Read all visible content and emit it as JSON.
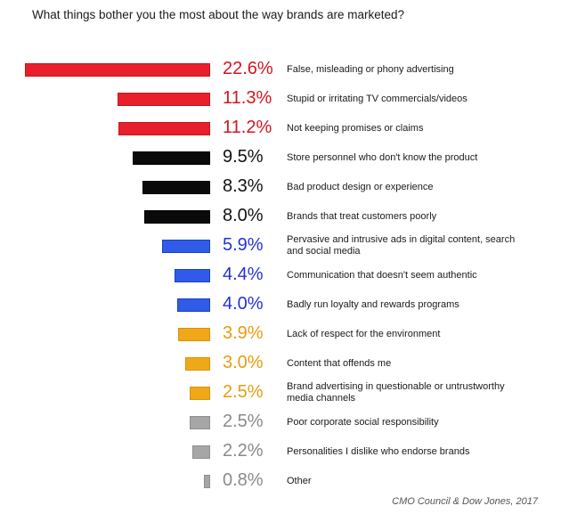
{
  "title": "What things bother you the most about the way brands are marketed?",
  "source": "CMO Council & Dow Jones, 2017",
  "colors": {
    "red": "#e8202c",
    "black": "#0a0a0a",
    "blue": "#2f5be8",
    "gold": "#f0a818",
    "gray": "#a6a6a6"
  },
  "chart_data": {
    "type": "bar",
    "orientation": "horizontal",
    "title": "What things bother you the most about the way brands are marketed?",
    "categories": [
      "False, misleading or phony advertising",
      "Stupid or irritating TV commercials/videos",
      "Not keeping promises or claims",
      "Store personnel who don't know the product",
      "Bad product design or experience",
      "Brands that treat customers poorly",
      "Pervasive and intrusive ads in digital content, search and social media",
      "Communication that doesn't seem authentic",
      "Badly run loyalty and rewards programs",
      "Lack of respect for the environment",
      "Content that offends me",
      "Brand advertising in questionable or untrustworthy media channels",
      "Poor corporate social responsibility",
      "Personalities I dislike who endorse brands",
      "Other"
    ],
    "values": [
      22.6,
      11.3,
      11.2,
      9.5,
      8.3,
      8.0,
      5.9,
      4.4,
      4.0,
      3.9,
      3.0,
      2.5,
      2.5,
      2.2,
      0.8
    ],
    "value_labels": [
      "22.6%",
      "11.3%",
      "11.2%",
      "9.5%",
      "8.3%",
      "8.0%",
      "5.9%",
      "4.4%",
      "4.0%",
      "3.9%",
      "3.0%",
      "2.5%",
      "2.5%",
      "2.2%",
      "0.8%"
    ],
    "bar_colors": [
      "red",
      "red",
      "red",
      "black",
      "black",
      "black",
      "blue",
      "blue",
      "blue",
      "gold",
      "gold",
      "gold",
      "gray",
      "gray",
      "gray"
    ]
  }
}
